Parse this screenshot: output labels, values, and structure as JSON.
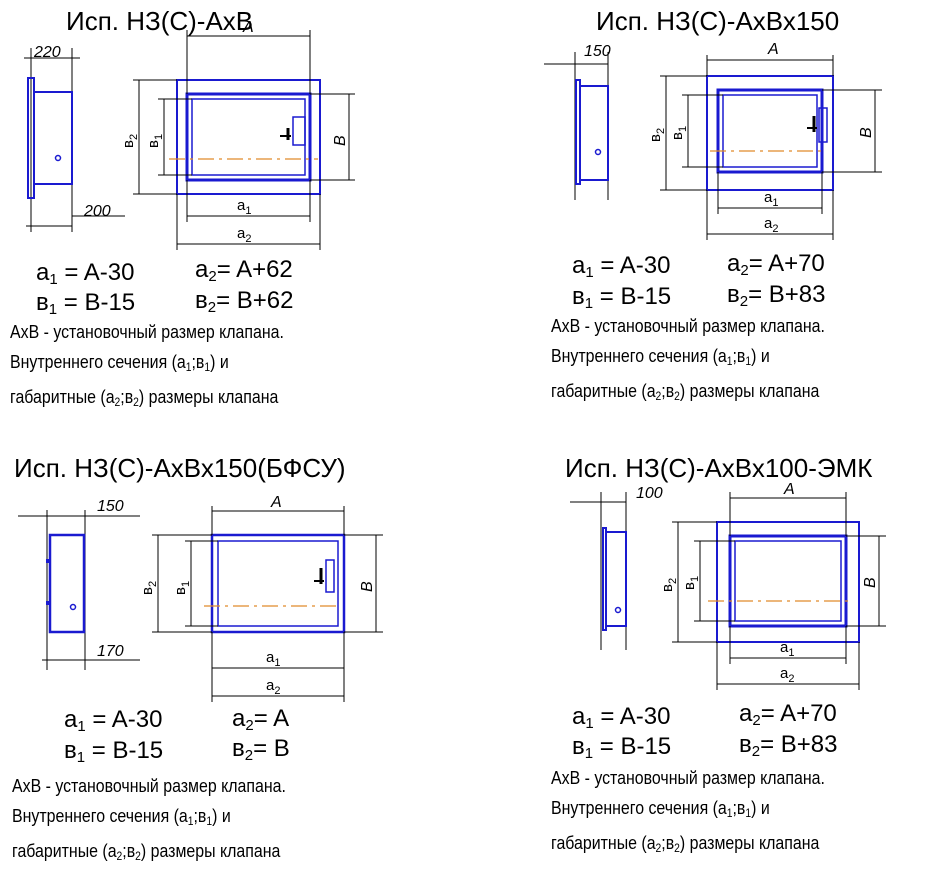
{
  "variants": [
    {
      "title": "Исп. НЗ(С)-АхВ",
      "depth_top": "220",
      "depth_bottom": "200",
      "dims": {
        "A": "A",
        "B": "B",
        "b2": "в",
        "b2_sub": "2",
        "b1": "в",
        "b1_sub": "1",
        "a1": "a",
        "a1_sub": "1",
        "a2": "a",
        "a2_sub": "2"
      },
      "formulas": {
        "a1_lhs": "a",
        "a1_sub": "1",
        "a1_rhs": "= A-30",
        "b1_lhs": "в",
        "b1_sub": "1",
        "b1_rhs": "= B-15",
        "a2_lhs": "a",
        "a2_sub": "2",
        "a2_rhs": "= A+62",
        "b2_lhs": "в",
        "b2_sub": "2",
        "b2_rhs": "= B+62"
      }
    },
    {
      "title": "Исп. НЗ(С)-АхВх150",
      "depth_top": "150",
      "depth_bottom": "",
      "dims": {
        "A": "A",
        "B": "B",
        "b2": "в",
        "b2_sub": "2",
        "b1": "в",
        "b1_sub": "1",
        "a1": "a",
        "a1_sub": "1",
        "a2": "a",
        "a2_sub": "2"
      },
      "formulas": {
        "a1_lhs": "a",
        "a1_sub": "1",
        "a1_rhs": "= A-30",
        "b1_lhs": "в",
        "b1_sub": "1",
        "b1_rhs": "= B-15",
        "a2_lhs": "a",
        "a2_sub": "2",
        "a2_rhs": "= A+70",
        "b2_lhs": "в",
        "b2_sub": "2",
        "b2_rhs": "= B+83"
      }
    },
    {
      "title": "Исп. НЗ(С)-АхВх150(БФСУ)",
      "depth_top": "150",
      "depth_bottom": "170",
      "dims": {
        "A": "A",
        "B": "B",
        "b2": "в",
        "b2_sub": "2",
        "b1": "в",
        "b1_sub": "1",
        "a1": "a",
        "a1_sub": "1",
        "a2": "a",
        "a2_sub": "2"
      },
      "formulas": {
        "a1_lhs": "a",
        "a1_sub": "1",
        "a1_rhs": "= A-30",
        "b1_lhs": "в",
        "b1_sub": "1",
        "b1_rhs": "= B-15",
        "a2_lhs": "a",
        "a2_sub": "2",
        "a2_rhs": "= A",
        "b2_lhs": "в",
        "b2_sub": "2",
        "b2_rhs": "= B"
      }
    },
    {
      "title": "Исп. НЗ(С)-АхВх100-ЭМК",
      "depth_top": "100",
      "depth_bottom": "",
      "dims": {
        "A": "A",
        "B": "B",
        "b2": "в",
        "b2_sub": "2",
        "b1": "в",
        "b1_sub": "1",
        "a1": "a",
        "a1_sub": "1",
        "a2": "a",
        "a2_sub": "2"
      },
      "formulas": {
        "a1_lhs": "a",
        "a1_sub": "1",
        "a1_rhs": "= A-30",
        "b1_lhs": "в",
        "b1_sub": "1",
        "b1_rhs": "= B-15",
        "a2_lhs": "a",
        "a2_sub": "2",
        "a2_rhs": "= A+70",
        "b2_lhs": "в",
        "b2_sub": "2",
        "b2_rhs": "= B+83"
      }
    }
  ],
  "note": {
    "line1": "АхВ - установочный размер клапана.",
    "line2_pre": "Внутреннего сечения (a",
    "line2_s1": "1",
    "line2_mid": ";в",
    "line2_s2": "1",
    "line2_post": ") и",
    "line3_pre": "габаритные (a",
    "line3_s1": "2",
    "line3_mid": ";в",
    "line3_s2": "2",
    "line3_post": ") размеры клапана"
  },
  "colors": {
    "outline": "#1a1ad0",
    "centerline": "#e08a2a",
    "dim": "#000000"
  }
}
